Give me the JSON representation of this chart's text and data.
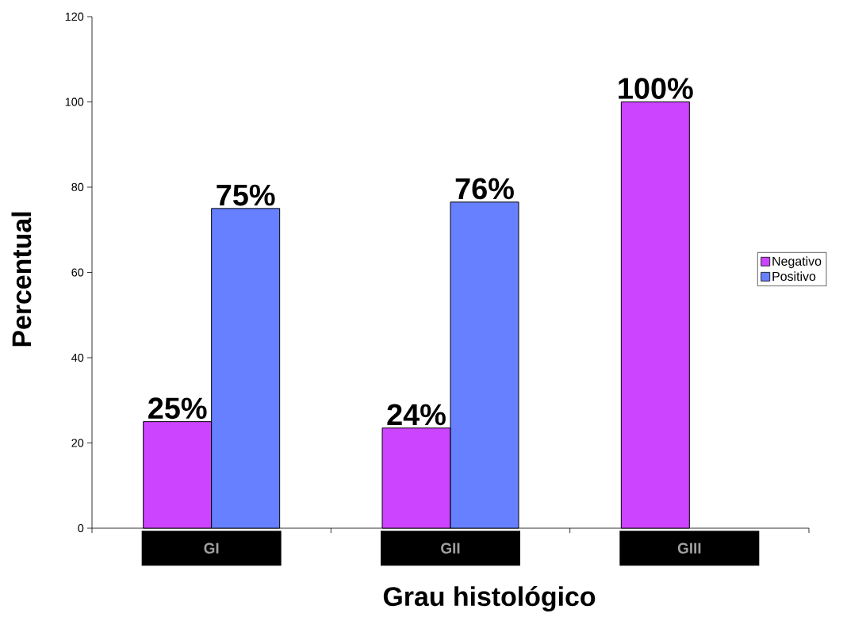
{
  "chart_data": {
    "type": "bar",
    "xlabel": "Grau histológico",
    "ylabel": "Percentual",
    "categories": [
      "GI",
      "GII",
      "GIII"
    ],
    "series": [
      {
        "name": "Negativo",
        "color": "#cc44ff",
        "values": [
          25,
          23.5,
          100
        ],
        "value_labels": [
          "25%",
          "24%",
          "100%"
        ]
      },
      {
        "name": "Positivo",
        "color": "#6680ff",
        "values": [
          75,
          76.5,
          null
        ],
        "value_labels": [
          "75%",
          "76%",
          null
        ]
      }
    ],
    "ylim": [
      0,
      120
    ],
    "yticks": [
      0,
      20,
      40,
      60,
      80,
      100,
      120
    ],
    "legend": "right"
  }
}
